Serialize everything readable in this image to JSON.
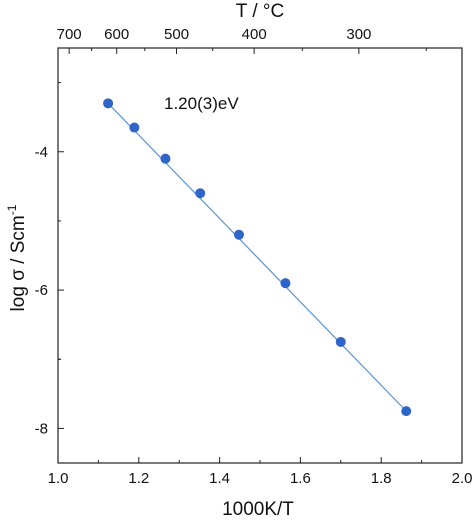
{
  "chart_data": {
    "type": "scatter",
    "title": "",
    "xlabel": "1000K/T",
    "ylabel_main": "log σ / Scm",
    "ylabel_sup": "-1",
    "top_axis_label": "T / °C",
    "xlim": [
      1.0,
      2.0
    ],
    "ylim": [
      -8.5,
      -2.5
    ],
    "x_ticks": [
      "1.0",
      "1.2",
      "1.4",
      "1.6",
      "1.8",
      "2.0"
    ],
    "x_tick_values": [
      1.0,
      1.2,
      1.4,
      1.6,
      1.8,
      2.0
    ],
    "y_ticks": [
      "-4",
      "-6",
      "-8"
    ],
    "y_tick_values": [
      -4,
      -6,
      -8
    ],
    "top_ticks": [
      "700",
      "600",
      "500",
      "400",
      "300"
    ],
    "top_tick_values": [
      700,
      600,
      500,
      400,
      300
    ],
    "annotation": "1.20(3)eV",
    "grid": false,
    "marker_color": "#2f65c8",
    "line_color": "#5b93d6",
    "series": [
      {
        "x": [
          1.124,
          1.189,
          1.266,
          1.352,
          1.448,
          1.563,
          1.7,
          1.862
        ],
        "y": [
          -3.3,
          -3.65,
          -4.1,
          -4.6,
          -5.2,
          -5.9,
          -6.75,
          -7.75
        ]
      }
    ],
    "fit_line": {
      "x": [
        1.124,
        1.862
      ],
      "y": [
        -3.3,
        -7.75
      ]
    }
  }
}
